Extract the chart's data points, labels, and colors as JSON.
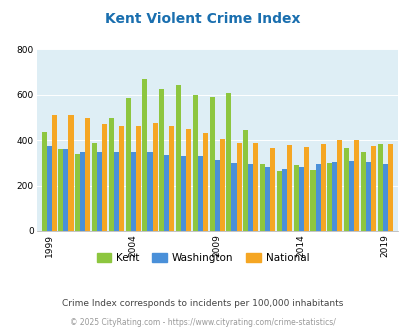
{
  "title": "Kent Violent Crime Index",
  "subtitle": "Crime Index corresponds to incidents per 100,000 inhabitants",
  "footer": "© 2025 CityRating.com - https://www.cityrating.com/crime-statistics/",
  "years": [
    1999,
    2000,
    2001,
    2002,
    2003,
    2004,
    2005,
    2006,
    2007,
    2008,
    2009,
    2010,
    2011,
    2012,
    2013,
    2014,
    2015,
    2016,
    2017,
    2018,
    2019
  ],
  "kent": [
    438,
    360,
    340,
    390,
    500,
    585,
    670,
    625,
    645,
    600,
    590,
    610,
    445,
    295,
    265,
    290,
    270,
    300,
    365,
    350,
    385
  ],
  "washington": [
    375,
    360,
    350,
    350,
    350,
    350,
    350,
    335,
    330,
    330,
    315,
    300,
    295,
    280,
    275,
    280,
    295,
    305,
    310,
    305,
    295
  ],
  "national": [
    510,
    510,
    500,
    470,
    465,
    465,
    475,
    465,
    450,
    430,
    405,
    390,
    390,
    365,
    380,
    370,
    385,
    400,
    400,
    375,
    385
  ],
  "kent_color": "#8dc63f",
  "washington_color": "#4a90d9",
  "national_color": "#f5a623",
  "bg_color": "#deeef5",
  "title_color": "#1a6faf",
  "subtitle_color": "#444444",
  "footer_color": "#999999",
  "ylim": [
    0,
    800
  ],
  "yticks": [
    0,
    200,
    400,
    600,
    800
  ],
  "xtick_years": [
    1999,
    2004,
    2009,
    2014,
    2019
  ]
}
